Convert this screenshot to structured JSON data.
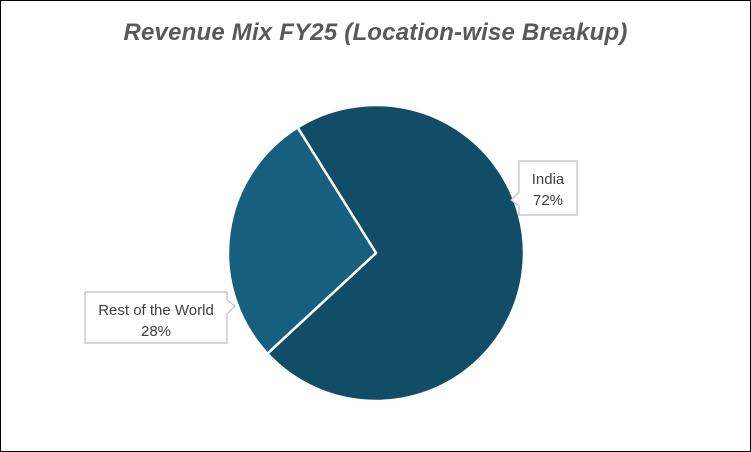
{
  "chart_data": {
    "type": "pie",
    "title": "Revenue Mix FY25 (Location-wise Breakup)",
    "categories": [
      "India",
      "Rest of the World"
    ],
    "values": [
      72,
      28
    ],
    "unit": "%",
    "start_angle_deg": -32,
    "colors": [
      "#114d66",
      "#175f7e"
    ],
    "slice_border_color": "#ffffff",
    "legend": "none",
    "data_labels": [
      {
        "category": "India",
        "value_text": "72%"
      },
      {
        "category": "Rest of the World",
        "value_text": "28%"
      }
    ]
  }
}
